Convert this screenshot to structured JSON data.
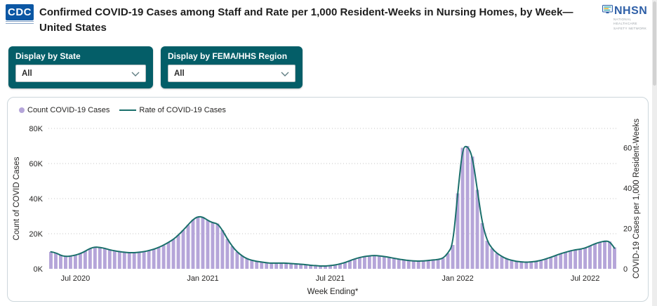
{
  "header": {
    "cdc_logo_text": "CDC",
    "title": "Confirmed COVID-19 Cases among Staff and Rate per 1,000 Resident-Weeks in Nursing Homes, by Week— United States",
    "nhsn_logo_text": "NHSN",
    "nhsn_logo_subtext": "NATIONAL HEALTHCARE SAFETY NETWORK"
  },
  "icons": {
    "filter_dropdown": "chevron-down-icon",
    "nhsn_logo": "monitor-icon"
  },
  "filters": [
    {
      "label": "Display by State",
      "value": "All"
    },
    {
      "label": "Display by FEMA/HHS Region",
      "value": "All"
    }
  ],
  "colors": {
    "filter_panel_teal": "#045e68",
    "bar_purple": "#b5a5d9",
    "line_teal": "#1a6f6b",
    "cdc_blue": "#0b57a4",
    "nhsn_blue": "#2e5fa7",
    "axis_text": "#252423",
    "gridline": "#c6c6c6"
  },
  "chart_data": {
    "type": "bar",
    "subtype": "bar-plus-line-dual-axis",
    "title": "",
    "legend_position": "top-left",
    "grid": "dotted-horizontal",
    "legend": [
      {
        "label": "Count COVID-19 Cases",
        "marker": "circle",
        "color": "#b5a5d9"
      },
      {
        "label": "Rate of COVID-19 Cases",
        "marker": "line",
        "color": "#1a6f6b"
      }
    ],
    "x_axis": {
      "label": "Week Ending*",
      "tick_labels": [
        "Jul 2020",
        "Jan 2021",
        "Jul 2021",
        "Jan 2022",
        "Jul 2022"
      ],
      "tick_indices": [
        5,
        31,
        57,
        83,
        109
      ],
      "n_weeks": 116
    },
    "y_left": {
      "label": "Count of COVID Cases",
      "tick_labels": [
        "0K",
        "20K",
        "40K",
        "60K",
        "80K"
      ],
      "tick_values": [
        0,
        20000,
        40000,
        60000,
        80000
      ],
      "min": 0,
      "max": 80000
    },
    "y_right": {
      "label": "COVID-19 Cases per 1,000 Resident-Weeks",
      "tick_labels": [
        "0",
        "20",
        "40",
        "60"
      ],
      "tick_values": [
        0,
        20,
        40,
        60
      ],
      "min": 0,
      "value_at_plot_top": 69.5
    },
    "series": [
      {
        "name": "Count COVID-19 Cases",
        "axis": "left",
        "unit": "cases",
        "values": [
          9600,
          9200,
          7600,
          7000,
          7200,
          7800,
          8600,
          10000,
          11600,
          12400,
          12200,
          11600,
          10800,
          10200,
          9800,
          9400,
          9200,
          9200,
          9400,
          9800,
          10400,
          11200,
          12200,
          13400,
          15000,
          16800,
          19200,
          22000,
          25000,
          28000,
          29800,
          29400,
          27600,
          26200,
          25800,
          22000,
          17000,
          12800,
          9600,
          7400,
          5800,
          4800,
          4200,
          3800,
          3400,
          3200,
          3200,
          3200,
          3200,
          3000,
          2800,
          2600,
          2400,
          2000,
          1800,
          1600,
          1600,
          1800,
          2200,
          2800,
          3600,
          4600,
          5600,
          6400,
          7000,
          7400,
          7600,
          7400,
          7000,
          6600,
          6000,
          5500,
          5000,
          4700,
          4500,
          4400,
          4500,
          4700,
          5000,
          5300,
          6000,
          8800,
          13600,
          43000,
          69000,
          70000,
          64000,
          45000,
          26000,
          16000,
          11600,
          8800,
          7000,
          5600,
          4800,
          4200,
          3900,
          3800,
          3900,
          4200,
          4800,
          5600,
          6600,
          7600,
          8600,
          9400,
          10200,
          10800,
          11200,
          11800,
          13000,
          14200,
          15200,
          15800,
          15600,
          12200
        ]
      },
      {
        "name": "Rate of COVID-19 Cases",
        "axis": "right",
        "unit": "cases per 1,000 resident-weeks",
        "values": [
          8.4,
          8.0,
          6.6,
          6.1,
          6.3,
          6.8,
          7.5,
          8.7,
          10.1,
          10.8,
          10.6,
          10.1,
          9.4,
          8.9,
          8.5,
          8.2,
          8.0,
          8.0,
          8.2,
          8.5,
          9.0,
          9.7,
          10.6,
          11.7,
          13.1,
          14.6,
          16.7,
          19.1,
          21.8,
          24.4,
          25.9,
          25.6,
          24.0,
          22.8,
          22.4,
          19.1,
          14.8,
          11.1,
          8.4,
          6.4,
          5.0,
          4.2,
          3.7,
          3.3,
          3.0,
          2.8,
          2.8,
          2.8,
          2.8,
          2.6,
          2.4,
          2.3,
          2.1,
          1.7,
          1.6,
          1.4,
          1.4,
          1.6,
          1.9,
          2.4,
          3.1,
          4.0,
          4.9,
          5.6,
          6.1,
          6.4,
          6.6,
          6.4,
          6.1,
          5.7,
          5.2,
          4.8,
          4.4,
          4.1,
          3.9,
          3.8,
          3.9,
          4.1,
          4.4,
          4.6,
          5.2,
          7.7,
          11.8,
          37.4,
          60.0,
          60.9,
          55.7,
          39.2,
          22.6,
          13.9,
          10.1,
          7.7,
          6.1,
          4.9,
          4.2,
          3.7,
          3.4,
          3.3,
          3.4,
          3.7,
          4.2,
          4.9,
          5.7,
          6.6,
          7.5,
          8.2,
          8.9,
          9.4,
          9.7,
          10.3,
          11.3,
          12.4,
          13.2,
          13.7,
          13.6,
          10.2
        ]
      }
    ]
  }
}
